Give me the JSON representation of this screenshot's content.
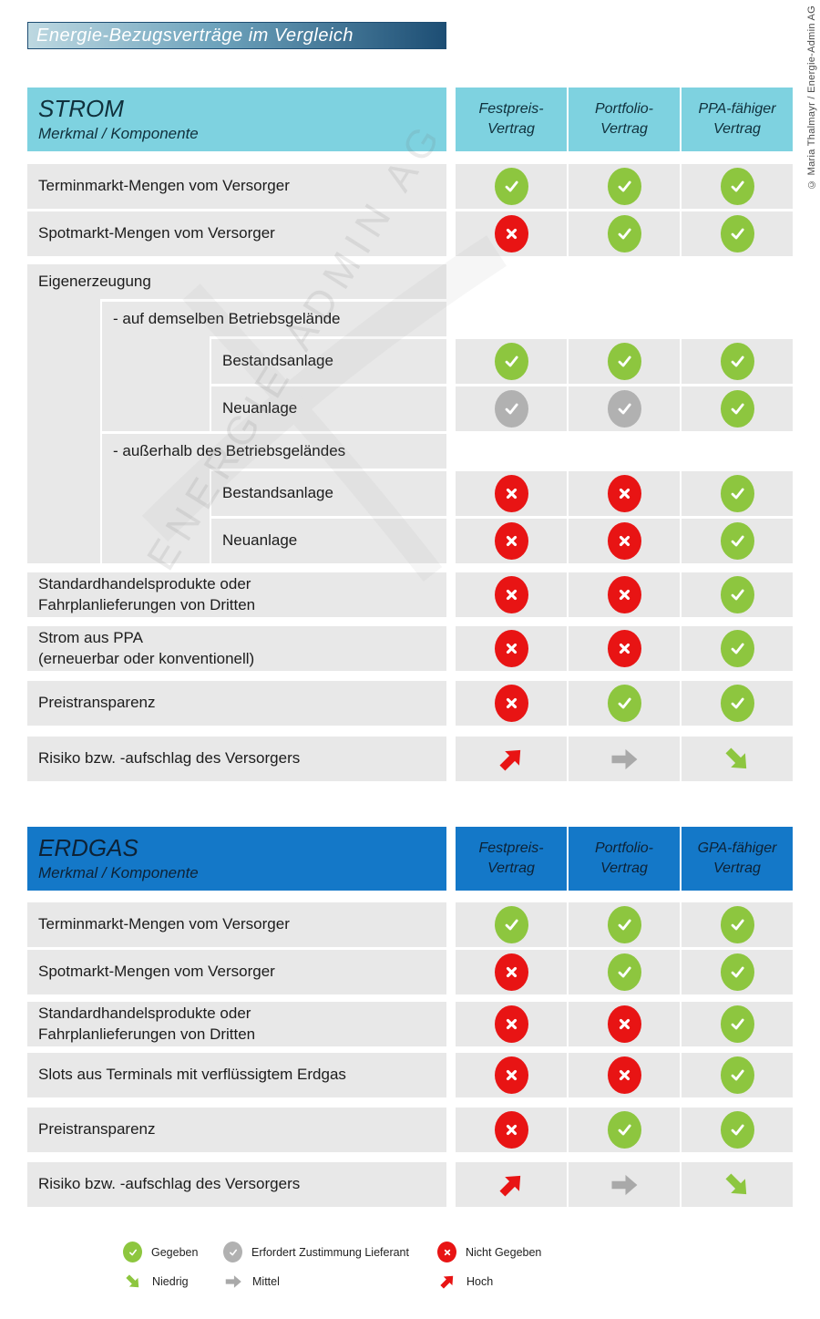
{
  "title": "Energie-Bezugsverträge im Vergleich",
  "copyright": "© Maria Thalmayr / Energie-Admin AG",
  "watermark": "ENERGIE-ADMIN AG",
  "colors": {
    "title_gradient_start": "#bdd8e1",
    "title_gradient_end": "#1d4e74",
    "strom_header": "#7ed2e0",
    "erdgas_header": "#1478c8",
    "row_background": "#e8e8e8",
    "green": "#8dc63f",
    "red": "#e81414",
    "gray": "#b1b1b1"
  },
  "sections": [
    {
      "id": "strom",
      "heading": "STROM",
      "subheading": "Merkmal / Komponente",
      "columns": [
        "Festpreis-\nVertrag",
        "Portfolio-\nVertrag",
        "PPA-fähiger\nVertrag"
      ],
      "rows": [
        {
          "label": "Terminmarkt-Mengen vom Versorger",
          "indent": 0,
          "values": [
            "check-green",
            "check-green",
            "check-green"
          ]
        },
        {
          "label": "Spotmarkt-Mengen vom Versorger",
          "indent": 0,
          "values": [
            "cross-red",
            "check-green",
            "check-green"
          ]
        },
        {
          "label": "Eigenerzeugung",
          "indent": 0,
          "values": null
        },
        {
          "label": "- auf demselben Betriebsgelände",
          "indent": 1,
          "values": null
        },
        {
          "label": "Bestandsanlage",
          "indent": 2,
          "values": [
            "check-green",
            "check-green",
            "check-green"
          ]
        },
        {
          "label": "Neuanlage",
          "indent": 2,
          "values": [
            "check-gray",
            "check-gray",
            "check-green"
          ]
        },
        {
          "label": "- außerhalb des Betriebsgeländes",
          "indent": 1,
          "values": null
        },
        {
          "label": "Bestandsanlage",
          "indent": 2,
          "values": [
            "cross-red",
            "cross-red",
            "check-green"
          ]
        },
        {
          "label": "Neuanlage",
          "indent": 2,
          "values": [
            "cross-red",
            "cross-red",
            "check-green"
          ]
        },
        {
          "label": "Standardhandelsprodukte oder\nFahrplanlieferungen von Dritten",
          "indent": 0,
          "values": [
            "cross-red",
            "cross-red",
            "check-green"
          ]
        },
        {
          "label": "Strom aus PPA\n(erneuerbar oder konventionell)",
          "indent": 0,
          "values": [
            "cross-red",
            "cross-red",
            "check-green"
          ]
        },
        {
          "label": "Preistransparenz",
          "indent": 0,
          "values": [
            "cross-red",
            "check-green",
            "check-green"
          ]
        },
        {
          "label": "Risiko bzw. -aufschlag des Versorgers",
          "indent": 0,
          "values": [
            "arrow-high",
            "arrow-mid",
            "arrow-low"
          ]
        }
      ]
    },
    {
      "id": "erdgas",
      "heading": "ERDGAS",
      "subheading": "Merkmal / Komponente",
      "columns": [
        "Festpreis-\nVertrag",
        "Portfolio-\nVertrag",
        "GPA-fähiger\nVertrag"
      ],
      "rows": [
        {
          "label": "Terminmarkt-Mengen vom Versorger",
          "indent": 0,
          "values": [
            "check-green",
            "check-green",
            "check-green"
          ]
        },
        {
          "label": "Spotmarkt-Mengen vom Versorger",
          "indent": 0,
          "values": [
            "cross-red",
            "check-green",
            "check-green"
          ]
        },
        {
          "label": "Standardhandelsprodukte oder\nFahrplanlieferungen von Dritten",
          "indent": 0,
          "values": [
            "cross-red",
            "cross-red",
            "check-green"
          ]
        },
        {
          "label": "Slots aus Terminals mit verflüssigtem Erdgas",
          "indent": 0,
          "values": [
            "cross-red",
            "cross-red",
            "check-green"
          ]
        },
        {
          "label": "Preistransparenz",
          "indent": 0,
          "values": [
            "cross-red",
            "check-green",
            "check-green"
          ]
        },
        {
          "label": "Risiko bzw. -aufschlag des Versorgers",
          "indent": 0,
          "values": [
            "arrow-high",
            "arrow-mid",
            "arrow-low"
          ]
        }
      ]
    }
  ],
  "legend": {
    "items": [
      {
        "icon": "check-green",
        "label": "Gegeben"
      },
      {
        "icon": "check-gray",
        "label": "Erfordert Zustimmung Lieferant"
      },
      {
        "icon": "cross-red",
        "label": "Nicht Gegeben"
      },
      {
        "icon": "arrow-low",
        "label": "Niedrig"
      },
      {
        "icon": "arrow-mid",
        "label": "Mittel"
      },
      {
        "icon": "arrow-high",
        "label": "Hoch"
      }
    ]
  }
}
